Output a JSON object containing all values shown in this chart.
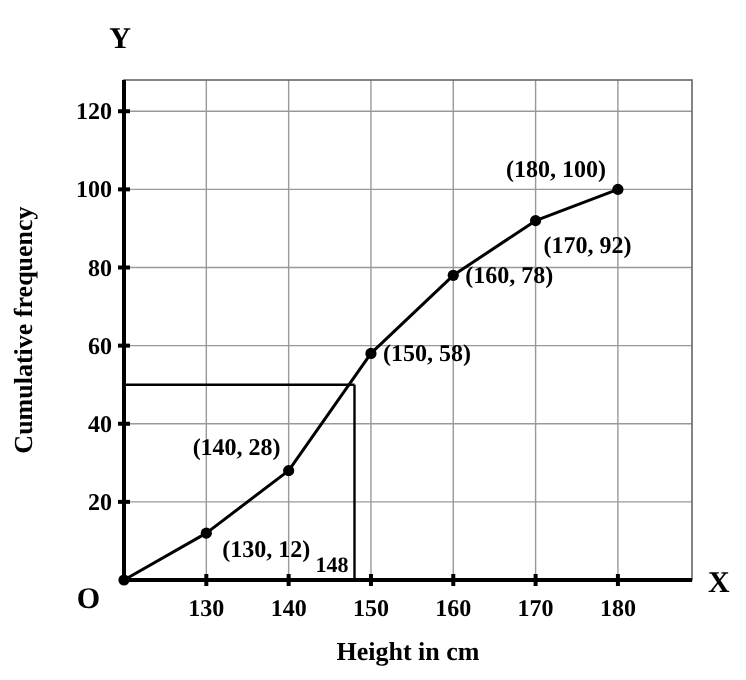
{
  "chart_data": {
    "type": "line",
    "xlabel": "Height in cm",
    "ylabel": "Cumulative frequency",
    "x": [
      120,
      130,
      140,
      150,
      160,
      170,
      180
    ],
    "series": [
      {
        "color": "#000000",
        "values": [
          0,
          12,
          28,
          58,
          78,
          92,
          100
        ]
      }
    ],
    "xlim": [
      120,
      189
    ],
    "xticks": [
      130,
      140,
      150,
      160,
      170,
      180
    ],
    "ylim": [
      0,
      128
    ],
    "yticks": [
      20,
      40,
      60,
      80,
      100,
      120
    ],
    "grid": true,
    "marker": "circle",
    "line_style": "solid",
    "ref_lines": [
      {
        "axis": "x",
        "value": 148,
        "label": "148"
      },
      {
        "axis": "y",
        "value": 50
      }
    ],
    "annotations": [
      {
        "text": "(130, 12)",
        "x": 130,
        "y": 12
      },
      {
        "text": "(140, 28)",
        "x": 140,
        "y": 28
      },
      {
        "text": "(150, 58)",
        "x": 150,
        "y": 58
      },
      {
        "text": "(160, 78)",
        "x": 160,
        "y": 78
      },
      {
        "text": "(170, 92)",
        "x": 170,
        "y": 92
      },
      {
        "text": "(180, 100)",
        "x": 180,
        "y": 100
      },
      "O",
      "X",
      "Y"
    ]
  }
}
